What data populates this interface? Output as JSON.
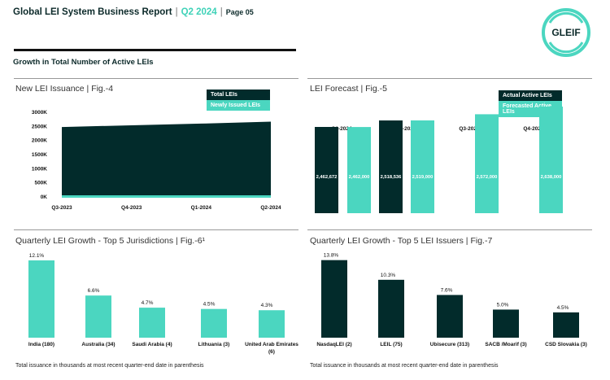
{
  "header": {
    "title": "Global LEI System Business Report",
    "quarter": "Q2 2024",
    "page": "Page 05"
  },
  "logo": {
    "text": "GLEIF"
  },
  "section_title": "Growth in Total Number of Active LEIs",
  "colors": {
    "dark": "#022b2b",
    "teal": "#4bd6c0"
  },
  "chart_data": [
    {
      "type": "area",
      "title": "New LEI Issuance | Fig.-4",
      "categories": [
        "Q3-2023",
        "Q4-2023",
        "Q1-2024",
        "Q2-2024"
      ],
      "yticks": [
        "0K",
        "500K",
        "1000K",
        "1500K",
        "2000K",
        "2500K",
        "3000K"
      ],
      "ylim": [
        0,
        3000
      ],
      "series": [
        {
          "name": "Total LEIs",
          "values": [
            2450,
            2510,
            2570,
            2640
          ]
        },
        {
          "name": "Newly Issued LEIs",
          "values": [
            60,
            60,
            60,
            60
          ]
        }
      ],
      "legend": "top-right"
    },
    {
      "type": "bar",
      "title": "LEI Forecast | Fig.-5",
      "categories": [
        "Q1-2024",
        "Q2-2024",
        "Q3-2024",
        "Q4-2024"
      ],
      "series": [
        {
          "name": "Actual Active LEIs",
          "values": [
            2462672,
            2518536,
            null,
            null
          ],
          "labels": [
            "2,462,672",
            "2,518,536",
            "",
            ""
          ]
        },
        {
          "name": "Forecasted Active LEIs",
          "values": [
            2462000,
            2519000,
            2572000,
            2638000
          ],
          "labels": [
            "2,462,000",
            "2,519,000",
            "2,572,000",
            "2,638,000"
          ]
        }
      ],
      "legend": "top-right"
    },
    {
      "type": "bar",
      "title": "Quarterly LEI Growth - Top 5 Jurisdictions | Fig.-6¹",
      "categories": [
        "India (180)",
        "Australia (34)",
        "Saudi Arabia (4)",
        "Lithuania (3)",
        "United Arab Emirates (6)"
      ],
      "values": [
        12.1,
        6.6,
        4.7,
        4.5,
        4.3
      ],
      "labels": [
        "12.1%",
        "6.6%",
        "4.7%",
        "4.5%",
        "4.3%"
      ],
      "footnote": "Total issuance in thousands at most recent quarter-end date in parenthesis"
    },
    {
      "type": "bar",
      "title": "Quarterly LEI Growth - Top 5 LEI Issuers | Fig.-7",
      "categories": [
        "NasdaqLEI (2)",
        "LEIL (75)",
        "Ubisecure (313)",
        "SACB /Moarif (3)",
        "CSD Slovakia (3)"
      ],
      "values": [
        13.8,
        10.3,
        7.6,
        5.0,
        4.5
      ],
      "labels": [
        "13.8%",
        "10.3%",
        "7.6%",
        "5.0%",
        "4.5%"
      ],
      "footnote": "Total issuance in thousands at most recent quarter-end date in parenthesis"
    }
  ]
}
